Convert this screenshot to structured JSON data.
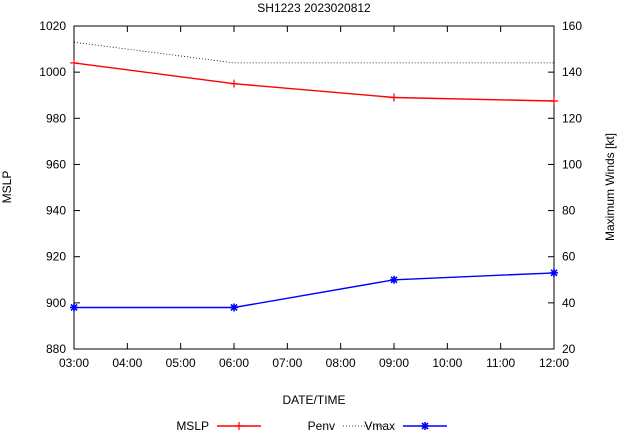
{
  "chart_data": {
    "type": "line",
    "title": "SH1223 2023020812",
    "xlabel": "DATE/TIME",
    "ylabel": "MSLP",
    "y2label": "Maximum Winds [kt]",
    "x": [
      "03:00",
      "04:00",
      "05:00",
      "06:00",
      "07:00",
      "08:00",
      "09:00",
      "10:00",
      "11:00",
      "12:00"
    ],
    "xlim": [
      3,
      12
    ],
    "ylim": [
      880,
      1020
    ],
    "y2lim": [
      20,
      160
    ],
    "yticks": [
      "880",
      "900",
      "920",
      "940",
      "960",
      "980",
      "1000",
      "1020"
    ],
    "y2ticks": [
      "20",
      "40",
      "60",
      "80",
      "100",
      "120",
      "140",
      "160"
    ],
    "series": [
      {
        "name": "MSLP",
        "axis": "left",
        "color": "#ff0000",
        "marker": "plus",
        "points": [
          [
            3,
            1004
          ],
          [
            6,
            995
          ],
          [
            9,
            989
          ],
          [
            12,
            987.5
          ]
        ]
      },
      {
        "name": "Penv",
        "axis": "left",
        "color": "#000000",
        "style": "dotted",
        "points": [
          [
            3,
            1013
          ],
          [
            6,
            1004
          ],
          [
            9,
            1004
          ],
          [
            12,
            1004
          ]
        ]
      },
      {
        "name": "Vmax",
        "axis": "right",
        "color": "#0000ff",
        "marker": "star",
        "points": [
          [
            3,
            38
          ],
          [
            6,
            38
          ],
          [
            9,
            50
          ],
          [
            12,
            53
          ]
        ]
      }
    ],
    "legend": [
      "MSLP",
      "Penv",
      "Vmax"
    ]
  }
}
